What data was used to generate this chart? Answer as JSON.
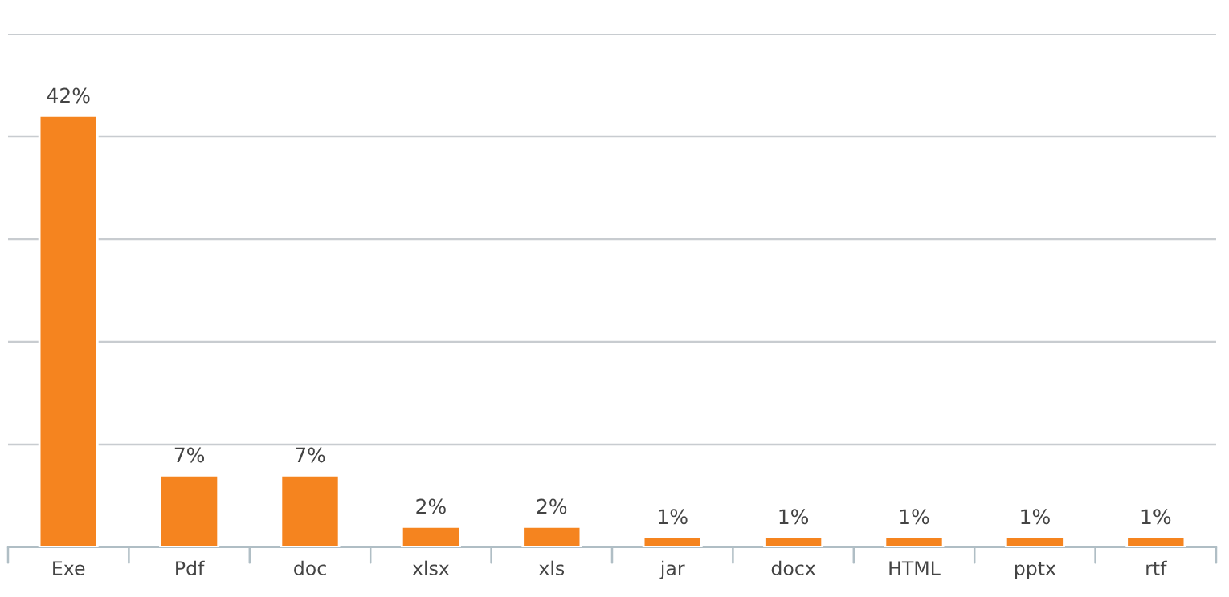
{
  "chart_data": {
    "type": "bar",
    "categories": [
      "Exe",
      "Pdf",
      "doc",
      "xlsx",
      "xls",
      "jar",
      "docx",
      "HTML",
      "pptx",
      "rtf"
    ],
    "values": [
      42,
      7,
      7,
      2,
      2,
      1,
      1,
      1,
      1,
      1
    ],
    "value_labels": [
      "42%",
      "7%",
      "7%",
      "2%",
      "2%",
      "1%",
      "1%",
      "1%",
      "1%",
      "1%"
    ],
    "color": "#f5841f",
    "ylim": [
      0,
      50
    ],
    "yticks": [
      {
        "value": 0,
        "label": null
      },
      {
        "value": 10,
        "label": null
      },
      {
        "value": 20,
        "label": null
      },
      {
        "value": 30,
        "label": null
      },
      {
        "value": 40,
        "label": null
      },
      {
        "value": 50,
        "label": null
      }
    ],
    "grid": "y",
    "tick_labels": "x"
  }
}
